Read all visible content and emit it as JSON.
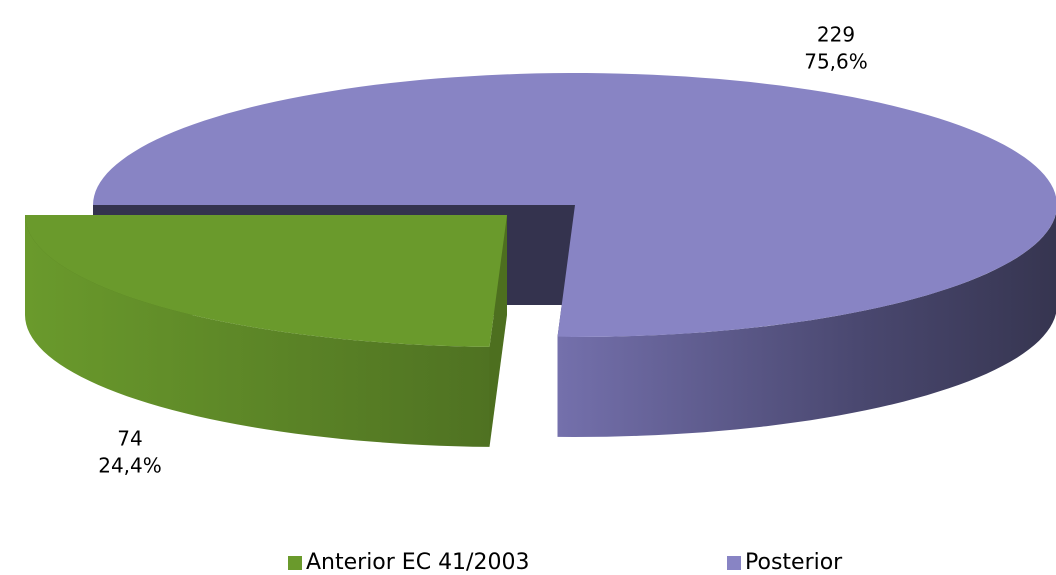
{
  "chart_data": {
    "type": "pie3d",
    "categories": [
      "Anterior EC 41/2003",
      "Posterior"
    ],
    "values": [
      74,
      229
    ],
    "percentages": [
      24.4,
      75.6
    ],
    "percentage_labels": [
      "24,4%",
      "75,6%"
    ],
    "colors": [
      "#6a9a2c",
      "#8884c4"
    ],
    "legend": "bottom"
  }
}
